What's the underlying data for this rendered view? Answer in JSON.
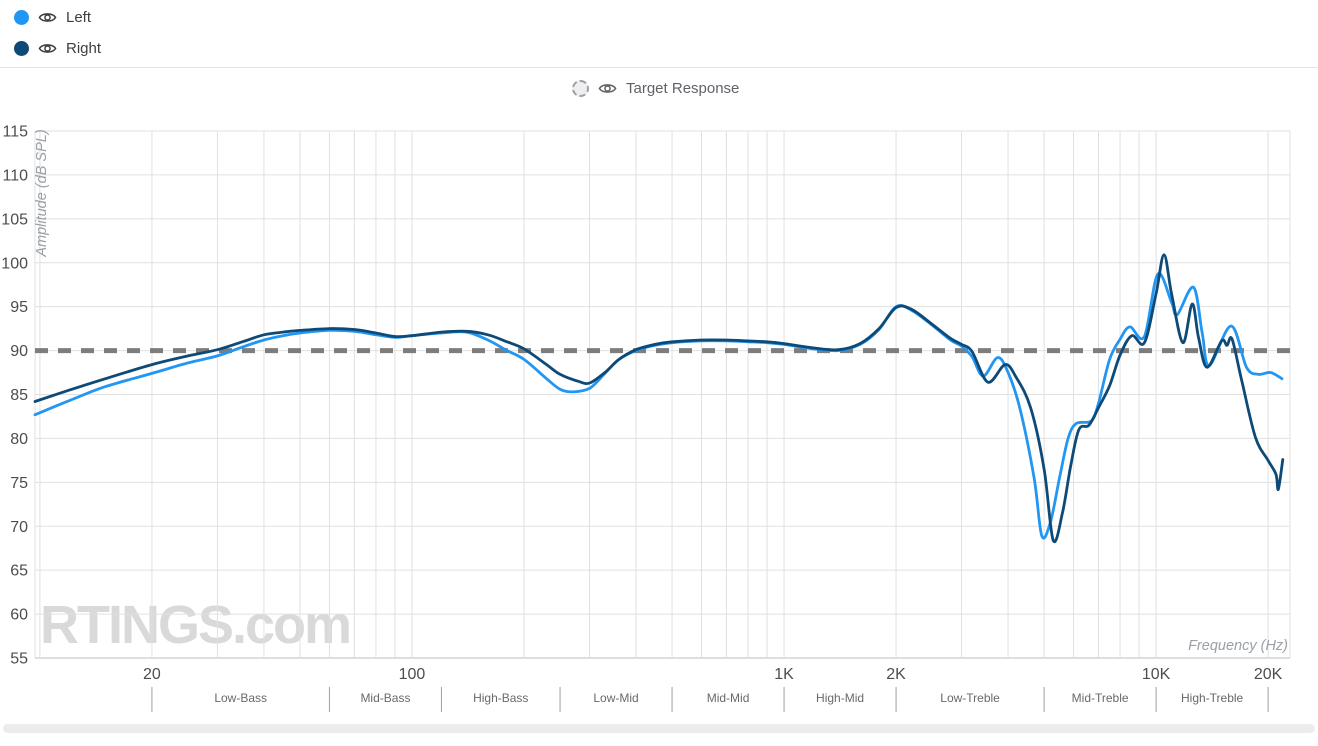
{
  "legend": {
    "left": {
      "label": "Left",
      "color": "#2196f3"
    },
    "right": {
      "label": "Right",
      "color": "#0e4a77"
    },
    "target": {
      "label": "Target Response"
    }
  },
  "watermark": {
    "text": "RTINGS",
    "suffix": ".com"
  },
  "chart_data": {
    "type": "line",
    "xlabel": "Frequency (Hz)",
    "ylabel": "Amplitude (dB SPL)",
    "x_scale": "log",
    "x_domain": [
      9.7,
      22900
    ],
    "ylim": [
      55,
      115
    ],
    "grid": true,
    "y_ticks": [
      55,
      60,
      65,
      70,
      75,
      80,
      85,
      90,
      95,
      100,
      105,
      110,
      115
    ],
    "x_major_ticks": [
      {
        "f": 20,
        "label": "20"
      },
      {
        "f": 100,
        "label": "100"
      },
      {
        "f": 1000,
        "label": "1K"
      },
      {
        "f": 2000,
        "label": "2K"
      },
      {
        "f": 10000,
        "label": "10K"
      },
      {
        "f": 20000,
        "label": "20K"
      }
    ],
    "x_gridlines": [
      10,
      20,
      30,
      40,
      50,
      60,
      70,
      80,
      90,
      100,
      200,
      300,
      400,
      500,
      600,
      700,
      800,
      900,
      1000,
      2000,
      3000,
      4000,
      5000,
      6000,
      7000,
      8000,
      9000,
      10000,
      20000
    ],
    "frequency_bands": {
      "boundaries": [
        20,
        60,
        120,
        250,
        500,
        1000,
        2000,
        5000,
        10000,
        20000
      ],
      "labels": [
        "Low-Bass",
        "Mid-Bass",
        "High-Bass",
        "Low-Mid",
        "Mid-Mid",
        "High-Mid",
        "Low-Treble",
        "Mid-Treble",
        "High-Treble"
      ]
    },
    "target_response": {
      "value": 90,
      "style": "dashed",
      "color": "#7d7d7d"
    },
    "series": [
      {
        "name": "Left",
        "color": "#2196f3",
        "points": [
          [
            9.7,
            82.7
          ],
          [
            12,
            84.3
          ],
          [
            15,
            85.9
          ],
          [
            20,
            87.4
          ],
          [
            25,
            88.6
          ],
          [
            30,
            89.4
          ],
          [
            35,
            90.4
          ],
          [
            40,
            91.2
          ],
          [
            45,
            91.7
          ],
          [
            50,
            92.0
          ],
          [
            60,
            92.3
          ],
          [
            70,
            92.2
          ],
          [
            80,
            91.8
          ],
          [
            90,
            91.5
          ],
          [
            100,
            91.7
          ],
          [
            120,
            92.0
          ],
          [
            140,
            92.1
          ],
          [
            160,
            91.2
          ],
          [
            180,
            90.0
          ],
          [
            200,
            89.0
          ],
          [
            230,
            86.8
          ],
          [
            250,
            85.6
          ],
          [
            270,
            85.3
          ],
          [
            300,
            85.7
          ],
          [
            330,
            87.4
          ],
          [
            360,
            89.0
          ],
          [
            400,
            90.0
          ],
          [
            450,
            90.6
          ],
          [
            500,
            90.9
          ],
          [
            600,
            91.1
          ],
          [
            700,
            91.1
          ],
          [
            800,
            91.0
          ],
          [
            900,
            90.9
          ],
          [
            1000,
            90.7
          ],
          [
            1200,
            90.2
          ],
          [
            1400,
            90.0
          ],
          [
            1600,
            90.7
          ],
          [
            1800,
            92.4
          ],
          [
            2000,
            95.0
          ],
          [
            2200,
            94.6
          ],
          [
            2500,
            92.9
          ],
          [
            2800,
            91.2
          ],
          [
            3000,
            90.5
          ],
          [
            3200,
            89.3
          ],
          [
            3430,
            87.1
          ],
          [
            3750,
            89.2
          ],
          [
            4000,
            87.5
          ],
          [
            4300,
            83.5
          ],
          [
            4700,
            75.5
          ],
          [
            4930,
            68.9
          ],
          [
            5200,
            70.5
          ],
          [
            5500,
            75.5
          ],
          [
            5800,
            80.0
          ],
          [
            6100,
            81.7
          ],
          [
            6700,
            82.0
          ],
          [
            7000,
            84.0
          ],
          [
            7500,
            89.0
          ],
          [
            8000,
            91.3
          ],
          [
            8500,
            92.7
          ],
          [
            9300,
            91.6
          ],
          [
            10100,
            98.7
          ],
          [
            11000,
            95.5
          ],
          [
            11400,
            94.1
          ],
          [
            12600,
            97.2
          ],
          [
            13300,
            92.0
          ],
          [
            13900,
            88.3
          ],
          [
            15900,
            92.8
          ],
          [
            17500,
            88.1
          ],
          [
            18800,
            87.3
          ],
          [
            20300,
            87.5
          ],
          [
            21800,
            86.8
          ]
        ]
      },
      {
        "name": "Right",
        "color": "#0e4a77",
        "points": [
          [
            9.7,
            84.2
          ],
          [
            12,
            85.5
          ],
          [
            15,
            86.8
          ],
          [
            20,
            88.4
          ],
          [
            25,
            89.4
          ],
          [
            30,
            90.1
          ],
          [
            35,
            91.0
          ],
          [
            40,
            91.8
          ],
          [
            45,
            92.1
          ],
          [
            50,
            92.3
          ],
          [
            60,
            92.5
          ],
          [
            70,
            92.4
          ],
          [
            80,
            92.0
          ],
          [
            90,
            91.6
          ],
          [
            100,
            91.7
          ],
          [
            120,
            92.1
          ],
          [
            140,
            92.2
          ],
          [
            160,
            91.8
          ],
          [
            180,
            91.0
          ],
          [
            200,
            90.2
          ],
          [
            230,
            88.4
          ],
          [
            250,
            87.3
          ],
          [
            280,
            86.5
          ],
          [
            300,
            86.3
          ],
          [
            330,
            87.5
          ],
          [
            360,
            89.0
          ],
          [
            400,
            90.1
          ],
          [
            450,
            90.7
          ],
          [
            500,
            91.0
          ],
          [
            600,
            91.2
          ],
          [
            700,
            91.2
          ],
          [
            800,
            91.1
          ],
          [
            900,
            91.0
          ],
          [
            1000,
            90.8
          ],
          [
            1200,
            90.3
          ],
          [
            1400,
            90.1
          ],
          [
            1600,
            90.8
          ],
          [
            1800,
            92.5
          ],
          [
            2000,
            94.9
          ],
          [
            2200,
            94.7
          ],
          [
            2500,
            93.0
          ],
          [
            2800,
            91.4
          ],
          [
            3000,
            90.7
          ],
          [
            3200,
            89.9
          ],
          [
            3530,
            86.4
          ],
          [
            3926,
            88.4
          ],
          [
            4200,
            87.0
          ],
          [
            4600,
            83.5
          ],
          [
            5000,
            76.5
          ],
          [
            5290,
            68.4
          ],
          [
            5600,
            71.5
          ],
          [
            5900,
            77.0
          ],
          [
            6200,
            81.0
          ],
          [
            6600,
            81.5
          ],
          [
            7000,
            83.5
          ],
          [
            7500,
            86.0
          ],
          [
            8000,
            89.5
          ],
          [
            8600,
            91.7
          ],
          [
            9300,
            90.9
          ],
          [
            10000,
            96.5
          ],
          [
            10500,
            100.9
          ],
          [
            11000,
            96.5
          ],
          [
            11800,
            90.9
          ],
          [
            12500,
            95.3
          ],
          [
            13000,
            91.5
          ],
          [
            13700,
            88.1
          ],
          [
            15000,
            91.1
          ],
          [
            15500,
            90.6
          ],
          [
            16000,
            91.3
          ],
          [
            17000,
            86.5
          ],
          [
            18500,
            80.1
          ],
          [
            20000,
            77.5
          ],
          [
            21000,
            75.9
          ],
          [
            21300,
            74.2
          ],
          [
            21900,
            77.6
          ]
        ]
      }
    ]
  }
}
